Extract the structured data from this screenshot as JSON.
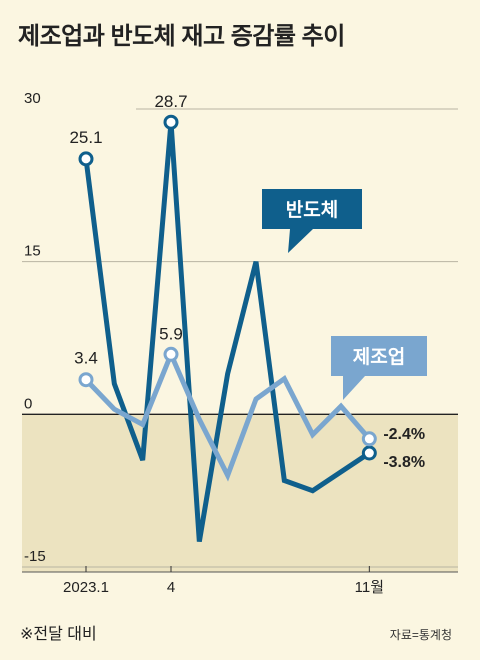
{
  "title": "제조업과 반도체 재고 증감률 추이",
  "footnote": "※전달 대비",
  "source": "자료=통계청",
  "colors": {
    "semiconductor": "#0f5f8c",
    "manufacturing": "#7aa6cf",
    "negative_fill": "#ece3c0"
  },
  "chart_data": {
    "type": "line",
    "title": "제조업과 반도체 재고 증감률 추이",
    "x": [
      "2023.1",
      "2",
      "3",
      "4",
      "5",
      "6",
      "7",
      "8",
      "9",
      "10",
      "11"
    ],
    "x_tick_labels": [
      "2023.1",
      "",
      "",
      "4",
      "",
      "",
      "",
      "",
      "",
      "",
      "11월"
    ],
    "y_ticks": [
      30,
      15,
      0,
      -15
    ],
    "y_tick_labels": [
      "30",
      "15",
      "0",
      "-15"
    ],
    "ylim": [
      -15,
      30
    ],
    "grid": true,
    "series": [
      {
        "name": "반도체",
        "values": [
          25.1,
          3.0,
          -4.5,
          28.7,
          -12.5,
          4.0,
          15.0,
          -6.5,
          -7.5,
          null,
          -3.8
        ],
        "labels": {
          "0": "25.1",
          "3": "28.7",
          "10": "-3.8%"
        }
      },
      {
        "name": "제조업",
        "values": [
          3.4,
          0.5,
          -1.0,
          5.9,
          -0.5,
          -6.0,
          1.5,
          3.5,
          -2.0,
          0.8,
          -2.4
        ],
        "labels": {
          "0": "3.4",
          "3": "5.9",
          "10": "-2.4%"
        }
      }
    ],
    "legend_callouts": [
      "반도체",
      "제조업"
    ]
  }
}
